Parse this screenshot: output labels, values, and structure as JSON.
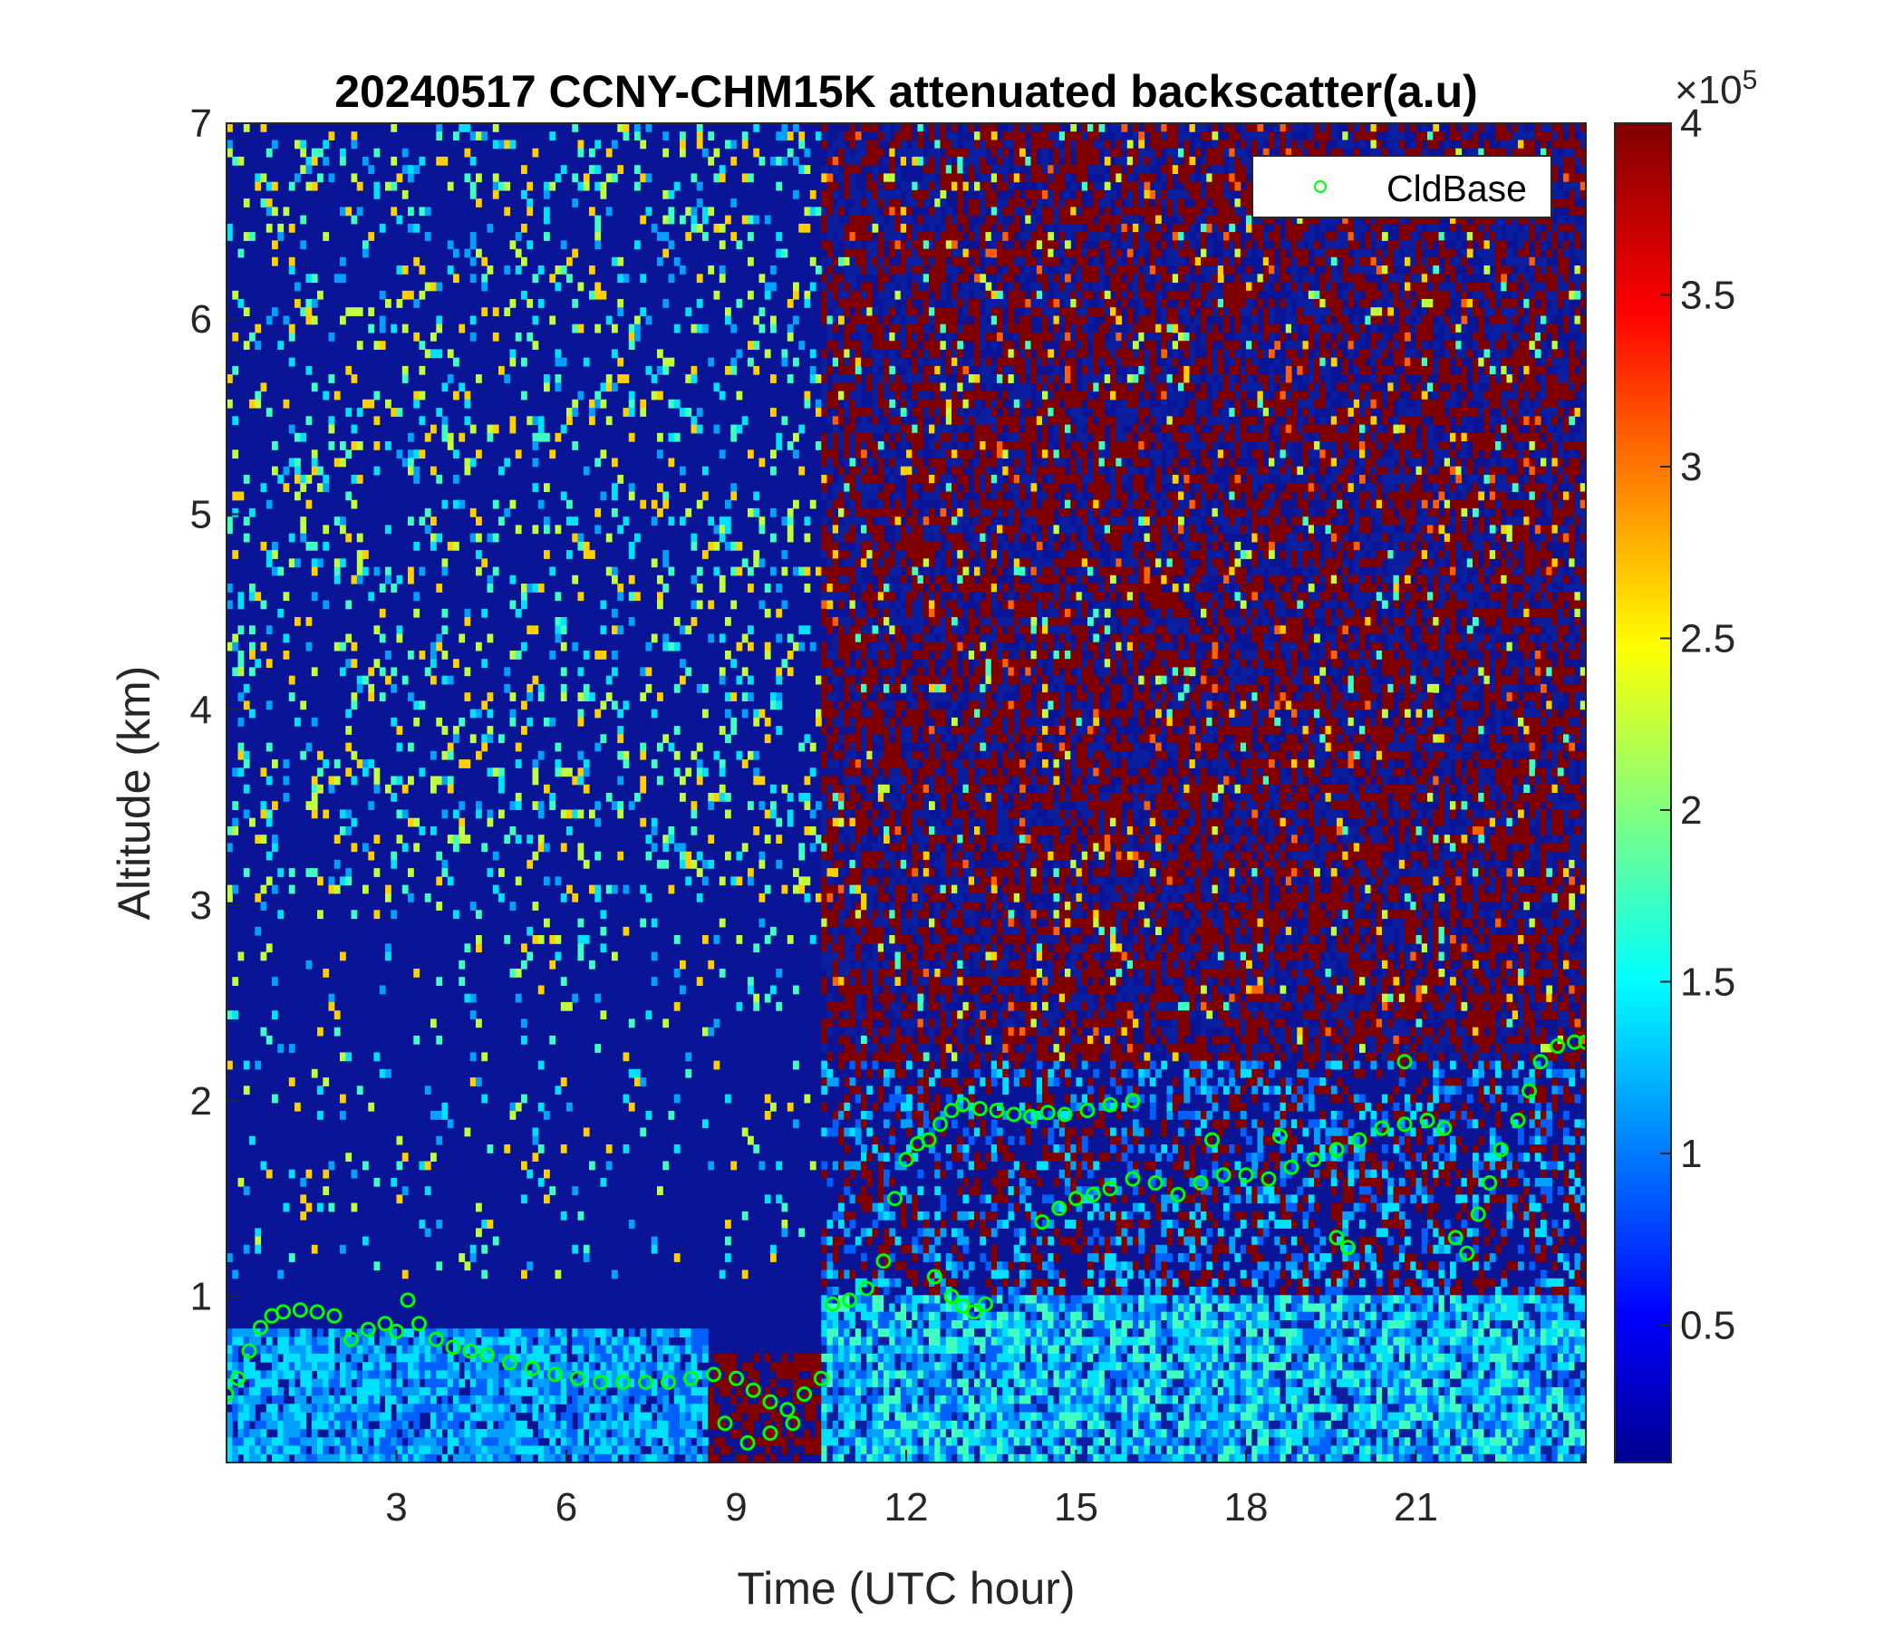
{
  "chart_data": {
    "type": "heatmap",
    "title": "20240517 CCNY-CHM15K attenuated backscatter(a.u)",
    "xlabel": "Time (UTC hour)",
    "ylabel": "Altitude (km)",
    "xlim": [
      0,
      24
    ],
    "ylim": [
      0.15,
      7
    ],
    "xticks": [
      3,
      6,
      9,
      12,
      15,
      18,
      21
    ],
    "yticks": [
      1,
      2,
      3,
      4,
      5,
      6,
      7
    ],
    "colorbar": {
      "range": [
        10000,
        400000
      ],
      "ticks": [
        0.5,
        1,
        1.5,
        2,
        2.5,
        3,
        3.5,
        4
      ],
      "exponent_label": "×10",
      "exponent": "5",
      "colormap": "jet"
    },
    "legend": {
      "label": "CldBase",
      "marker": "circle",
      "color": "#00ff00",
      "location": "top-right"
    },
    "series": [
      {
        "name": "CldBase",
        "points": [
          [
            0.0,
            0.5
          ],
          [
            0.2,
            0.58
          ],
          [
            0.4,
            0.72
          ],
          [
            0.6,
            0.84
          ],
          [
            0.8,
            0.9
          ],
          [
            1.0,
            0.92
          ],
          [
            1.3,
            0.93
          ],
          [
            1.6,
            0.92
          ],
          [
            1.9,
            0.9
          ],
          [
            2.2,
            0.78
          ],
          [
            2.5,
            0.83
          ],
          [
            2.8,
            0.86
          ],
          [
            3.0,
            0.82
          ],
          [
            3.2,
            0.98
          ],
          [
            3.4,
            0.86
          ],
          [
            3.7,
            0.78
          ],
          [
            4.0,
            0.74
          ],
          [
            4.3,
            0.72
          ],
          [
            4.6,
            0.7
          ],
          [
            5.0,
            0.66
          ],
          [
            5.4,
            0.63
          ],
          [
            5.8,
            0.6
          ],
          [
            6.2,
            0.58
          ],
          [
            6.6,
            0.56
          ],
          [
            7.0,
            0.56
          ],
          [
            7.4,
            0.56
          ],
          [
            7.8,
            0.56
          ],
          [
            8.2,
            0.58
          ],
          [
            8.6,
            0.6
          ],
          [
            9.0,
            0.58
          ],
          [
            9.3,
            0.52
          ],
          [
            9.6,
            0.46
          ],
          [
            9.9,
            0.42
          ],
          [
            10.2,
            0.5
          ],
          [
            10.5,
            0.58
          ],
          [
            10.7,
            0.96
          ],
          [
            11.0,
            0.98
          ],
          [
            11.3,
            1.04
          ],
          [
            11.6,
            1.18
          ],
          [
            11.8,
            1.5
          ],
          [
            12.0,
            1.7
          ],
          [
            12.2,
            1.78
          ],
          [
            12.4,
            1.8
          ],
          [
            12.6,
            1.88
          ],
          [
            12.8,
            1.95
          ],
          [
            13.0,
            1.98
          ],
          [
            13.3,
            1.96
          ],
          [
            13.6,
            1.95
          ],
          [
            13.9,
            1.93
          ],
          [
            14.2,
            1.92
          ],
          [
            14.5,
            1.94
          ],
          [
            14.8,
            1.93
          ],
          [
            15.2,
            1.95
          ],
          [
            15.6,
            1.98
          ],
          [
            16.0,
            2.0
          ],
          [
            12.5,
            1.1
          ],
          [
            12.8,
            1.0
          ],
          [
            13.0,
            0.95
          ],
          [
            13.2,
            0.92
          ],
          [
            13.4,
            0.96
          ],
          [
            14.4,
            1.38
          ],
          [
            14.7,
            1.45
          ],
          [
            15.0,
            1.5
          ],
          [
            15.3,
            1.52
          ],
          [
            15.6,
            1.55
          ],
          [
            16.0,
            1.6
          ],
          [
            16.4,
            1.58
          ],
          [
            16.8,
            1.52
          ],
          [
            17.2,
            1.58
          ],
          [
            17.6,
            1.62
          ],
          [
            18.0,
            1.62
          ],
          [
            18.4,
            1.6
          ],
          [
            18.8,
            1.66
          ],
          [
            19.2,
            1.7
          ],
          [
            19.6,
            1.75
          ],
          [
            20.0,
            1.8
          ],
          [
            20.4,
            1.86
          ],
          [
            20.8,
            1.88
          ],
          [
            21.2,
            1.9
          ],
          [
            21.5,
            1.86
          ],
          [
            21.7,
            1.3
          ],
          [
            21.9,
            1.22
          ],
          [
            22.1,
            1.42
          ],
          [
            22.3,
            1.58
          ],
          [
            22.5,
            1.75
          ],
          [
            22.8,
            1.9
          ],
          [
            23.0,
            2.05
          ],
          [
            23.2,
            2.2
          ],
          [
            23.5,
            2.28
          ],
          [
            23.8,
            2.3
          ],
          [
            24.0,
            2.3
          ],
          [
            8.8,
            0.35
          ],
          [
            9.2,
            0.25
          ],
          [
            9.6,
            0.3
          ],
          [
            10.0,
            0.35
          ],
          [
            20.8,
            2.2
          ],
          [
            19.6,
            1.3
          ],
          [
            19.8,
            1.25
          ],
          [
            17.4,
            1.8
          ],
          [
            18.6,
            1.82
          ]
        ]
      }
    ]
  }
}
